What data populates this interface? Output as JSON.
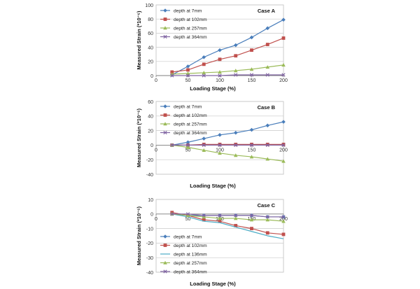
{
  "chart_data": [
    {
      "type": "line",
      "title": "Case A",
      "xlabel": "Loading Stage  (%)",
      "ylabel": "Measured Strain  (*10⁻⁶)",
      "xlim": [
        0,
        200
      ],
      "ylim": [
        0,
        100
      ],
      "xticks": [
        0,
        50,
        100,
        150,
        200
      ],
      "yticks": [
        0,
        20,
        40,
        60,
        80,
        100
      ],
      "grid": "horizontal",
      "legend_position": "top-left",
      "x": [
        25,
        50,
        75,
        100,
        125,
        150,
        175,
        200
      ],
      "series": [
        {
          "name": "depth at 7mm",
          "color": "#4a7ebb",
          "marker": "diamond",
          "values": [
            1,
            13,
            26,
            36,
            43,
            54,
            67,
            79
          ]
        },
        {
          "name": "depth at 102mm",
          "color": "#c0504d",
          "marker": "square",
          "values": [
            5,
            8,
            16,
            23,
            28,
            36,
            44,
            53
          ]
        },
        {
          "name": "depth at 257mm",
          "color": "#9bbb59",
          "marker": "triangle",
          "values": [
            2,
            3,
            4,
            5,
            7,
            9,
            12,
            15
          ]
        },
        {
          "name": "depth at 364mm",
          "color": "#8064a2",
          "marker": "x",
          "values": [
            0,
            0,
            0,
            0,
            1,
            1,
            1,
            1
          ]
        }
      ]
    },
    {
      "type": "line",
      "title": "Case B",
      "xlabel": "Loading Stage  (%)",
      "ylabel": "Measured Strain  (*10⁻⁶)",
      "xlim": [
        0,
        200
      ],
      "ylim": [
        -40,
        60
      ],
      "xticks": [
        0,
        50,
        100,
        150,
        200
      ],
      "yticks": [
        -40,
        -20,
        0,
        20,
        40,
        60
      ],
      "grid": "horizontal",
      "legend_position": "top-left",
      "x": [
        25,
        50,
        75,
        100,
        125,
        150,
        175,
        200
      ],
      "series": [
        {
          "name": "depth at 7mm",
          "color": "#4a7ebb",
          "marker": "diamond",
          "values": [
            0,
            4,
            9,
            14,
            17,
            21,
            27,
            32
          ]
        },
        {
          "name": "depth at 102mm",
          "color": "#c0504d",
          "marker": "square",
          "values": [
            0,
            0,
            1,
            1,
            1,
            1,
            1,
            1
          ]
        },
        {
          "name": "depth at 257mm",
          "color": "#9bbb59",
          "marker": "triangle",
          "values": [
            0,
            -3,
            -7,
            -11,
            -14,
            -16,
            -19,
            -22
          ]
        },
        {
          "name": "depth at 364mm",
          "color": "#8064a2",
          "marker": "x",
          "values": [
            0,
            0,
            0,
            0,
            0,
            0,
            0,
            0
          ]
        }
      ]
    },
    {
      "type": "line",
      "title": "Case C",
      "xlabel": "Loading Stage  (%)",
      "ylabel": "Measured Strain  (*10⁻⁶)",
      "xlim": [
        0,
        200
      ],
      "ylim": [
        -40,
        10
      ],
      "xticks": [
        0,
        50,
        100,
        150,
        200
      ],
      "yticks": [
        -40,
        -30,
        -20,
        -10,
        0,
        10
      ],
      "grid": "horizontal",
      "legend_position": "bottom-left",
      "x": [
        25,
        50,
        75,
        100,
        125,
        150,
        175,
        200
      ],
      "series": [
        {
          "name": "depth at 7mm",
          "color": "#4a7ebb",
          "marker": "diamond",
          "values": [
            0,
            -1,
            -1,
            -1,
            -1,
            -1,
            -2,
            -2
          ]
        },
        {
          "name": "depth at 102mm",
          "color": "#c0504d",
          "marker": "square",
          "values": [
            1,
            -1,
            -4,
            -5,
            -8,
            -10,
            -13,
            -14
          ]
        },
        {
          "name": "depth at 136mm",
          "color": "#4bacc6",
          "marker": "none",
          "values": [
            0,
            -2,
            -5,
            -6,
            -9,
            -12,
            -15,
            -17
          ]
        },
        {
          "name": "depth at 257mm",
          "color": "#9bbb59",
          "marker": "triangle",
          "values": [
            0,
            -1,
            -2,
            -3,
            -3,
            -4,
            -4,
            -5
          ]
        },
        {
          "name": "depth at 364mm",
          "color": "#8064a2",
          "marker": "x",
          "values": [
            0,
            0,
            -1,
            -1,
            -1,
            -1,
            -2,
            -2
          ]
        }
      ]
    }
  ]
}
